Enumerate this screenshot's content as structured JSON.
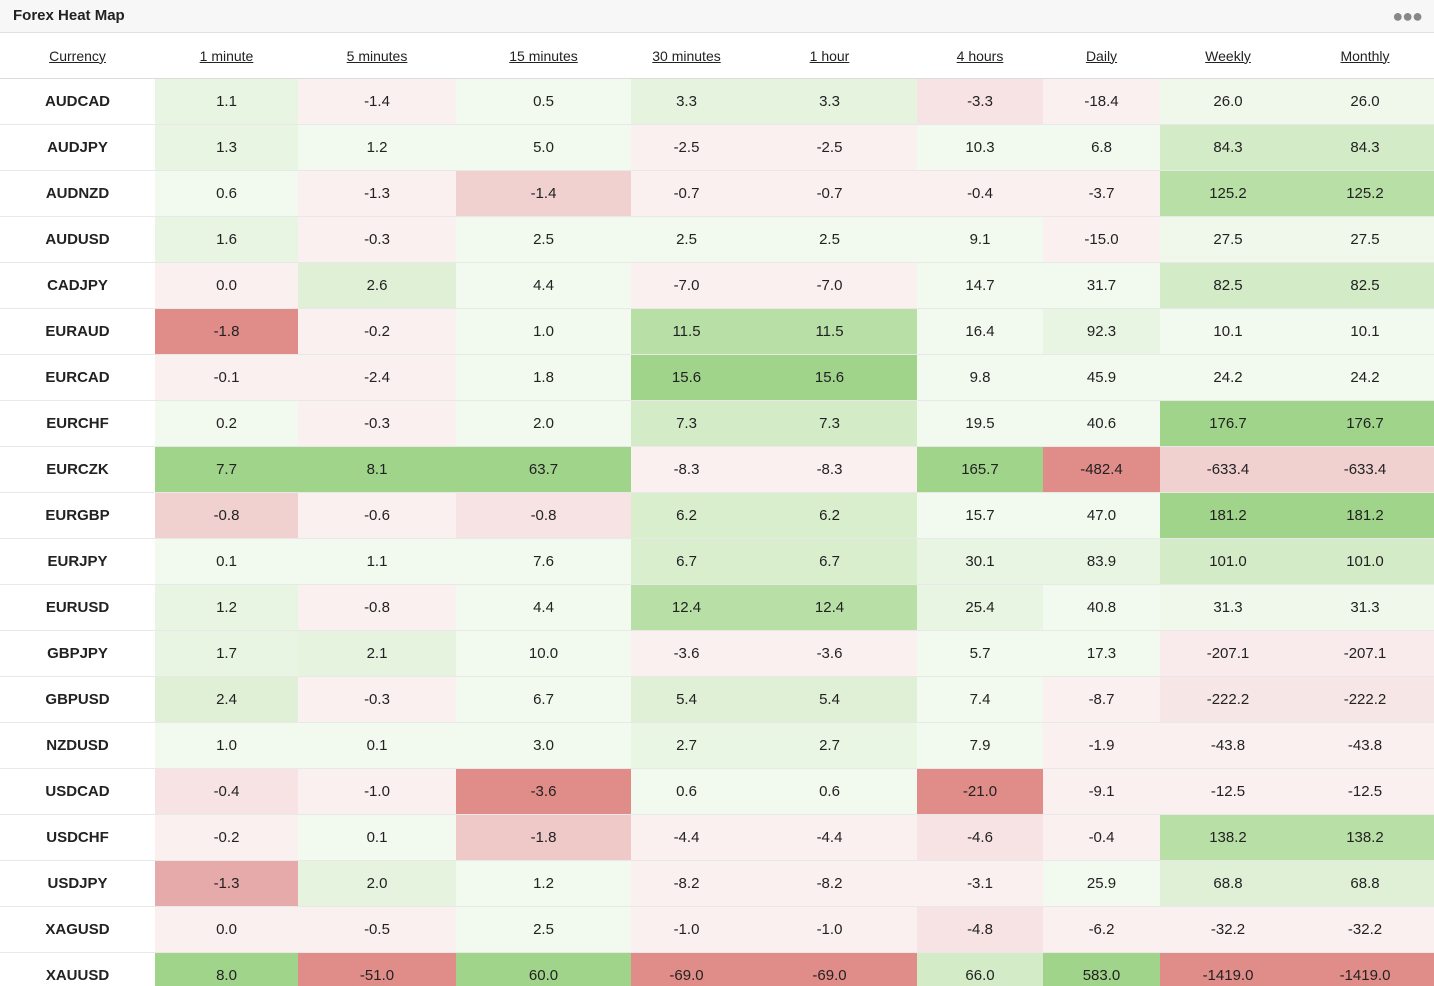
{
  "widget": {
    "title": "Forex Heat Map",
    "menu_icon": "more-horizontal-icon"
  },
  "colors": {
    "strong_green": "#9fd48a",
    "green": "#b8e0a6",
    "light_green": "#d3ecc7",
    "pale_green": "#e9f5e3",
    "faint_green": "#f2f9ef",
    "faint_red": "#fbf0f0",
    "pale_red": "#f7e3e3",
    "light_red": "#f1d0d0",
    "red": "#e7aaaa",
    "strong_red": "#e08c89"
  },
  "headers": [
    "Currency",
    "1 minute",
    "5 minutes",
    "15 minutes",
    "30 minutes",
    "1 hour",
    "4 hours",
    "Daily",
    "Weekly",
    "Monthly"
  ],
  "rows": [
    {
      "pair": "AUDCAD",
      "values": [
        "1.1",
        "-1.4",
        "0.5",
        "3.3",
        "3.3",
        "-3.3",
        "-18.4",
        "26.0",
        "26.0"
      ],
      "colors": [
        "#e9f5e3",
        "#fbf0f0",
        "#f2f9ef",
        "#e6f3df",
        "#e6f3df",
        "#f7e3e3",
        "#fbf0f0",
        "#f0f8ec",
        "#f0f8ec"
      ]
    },
    {
      "pair": "AUDJPY",
      "values": [
        "1.3",
        "1.2",
        "5.0",
        "-2.5",
        "-2.5",
        "10.3",
        "6.8",
        "84.3",
        "84.3"
      ],
      "colors": [
        "#e9f5e3",
        "#f2f9ef",
        "#f2f9ef",
        "#fbf0f0",
        "#fbf0f0",
        "#f2f9ef",
        "#f2f9ef",
        "#d3ecc7",
        "#d3ecc7"
      ]
    },
    {
      "pair": "AUDNZD",
      "values": [
        "0.6",
        "-1.3",
        "-1.4",
        "-0.7",
        "-0.7",
        "-0.4",
        "-3.7",
        "125.2",
        "125.2"
      ],
      "colors": [
        "#f2f9ef",
        "#fbf0f0",
        "#f1d0d0",
        "#fbf0f0",
        "#fbf0f0",
        "#fbf0f0",
        "#fbf0f0",
        "#b8e0a6",
        "#b8e0a6"
      ]
    },
    {
      "pair": "AUDUSD",
      "values": [
        "1.6",
        "-0.3",
        "2.5",
        "2.5",
        "2.5",
        "9.1",
        "-15.0",
        "27.5",
        "27.5"
      ],
      "colors": [
        "#e9f5e3",
        "#fbf0f0",
        "#f2f9ef",
        "#f2f9ef",
        "#f2f9ef",
        "#f2f9ef",
        "#fbf0f0",
        "#f0f8ec",
        "#f0f8ec"
      ]
    },
    {
      "pair": "CADJPY",
      "values": [
        "0.0",
        "2.6",
        "4.4",
        "-7.0",
        "-7.0",
        "14.7",
        "31.7",
        "82.5",
        "82.5"
      ],
      "colors": [
        "#fbf0f0",
        "#dff0d6",
        "#f2f9ef",
        "#fbf0f0",
        "#fbf0f0",
        "#f2f9ef",
        "#f2f9ef",
        "#d3ecc7",
        "#d3ecc7"
      ]
    },
    {
      "pair": "EURAUD",
      "values": [
        "-1.8",
        "-0.2",
        "1.0",
        "11.5",
        "11.5",
        "16.4",
        "92.3",
        "10.1",
        "10.1"
      ],
      "colors": [
        "#e08c89",
        "#fbf0f0",
        "#f2f9ef",
        "#b8e0a6",
        "#b8e0a6",
        "#f2f9ef",
        "#e9f5e3",
        "#f2f9ef",
        "#f2f9ef"
      ]
    },
    {
      "pair": "EURCAD",
      "values": [
        "-0.1",
        "-2.4",
        "1.8",
        "15.6",
        "15.6",
        "9.8",
        "45.9",
        "24.2",
        "24.2"
      ],
      "colors": [
        "#fbf0f0",
        "#fbf0f0",
        "#f2f9ef",
        "#9fd48a",
        "#9fd48a",
        "#f2f9ef",
        "#f2f9ef",
        "#f2f9ef",
        "#f2f9ef"
      ]
    },
    {
      "pair": "EURCHF",
      "values": [
        "0.2",
        "-0.3",
        "2.0",
        "7.3",
        "7.3",
        "19.5",
        "40.6",
        "176.7",
        "176.7"
      ],
      "colors": [
        "#f2f9ef",
        "#fbf0f0",
        "#f2f9ef",
        "#d3ecc7",
        "#d3ecc7",
        "#f2f9ef",
        "#f2f9ef",
        "#9fd48a",
        "#9fd48a"
      ]
    },
    {
      "pair": "EURCZK",
      "values": [
        "7.7",
        "8.1",
        "63.7",
        "-8.3",
        "-8.3",
        "165.7",
        "-482.4",
        "-633.4",
        "-633.4"
      ],
      "colors": [
        "#9fd48a",
        "#9fd48a",
        "#9fd48a",
        "#fbf0f0",
        "#fbf0f0",
        "#9fd48a",
        "#e08c89",
        "#f1d0d0",
        "#f1d0d0"
      ]
    },
    {
      "pair": "EURGBP",
      "values": [
        "-0.8",
        "-0.6",
        "-0.8",
        "6.2",
        "6.2",
        "15.7",
        "47.0",
        "181.2",
        "181.2"
      ],
      "colors": [
        "#f1d0d0",
        "#fbf0f0",
        "#f7e3e3",
        "#d8eecd",
        "#d8eecd",
        "#f2f9ef",
        "#f2f9ef",
        "#9fd48a",
        "#9fd48a"
      ]
    },
    {
      "pair": "EURJPY",
      "values": [
        "0.1",
        "1.1",
        "7.6",
        "6.7",
        "6.7",
        "30.1",
        "83.9",
        "101.0",
        "101.0"
      ],
      "colors": [
        "#f2f9ef",
        "#f2f9ef",
        "#f2f9ef",
        "#d8eecd",
        "#d8eecd",
        "#e9f5e3",
        "#e9f5e3",
        "#d3ecc7",
        "#d3ecc7"
      ]
    },
    {
      "pair": "EURUSD",
      "values": [
        "1.2",
        "-0.8",
        "4.4",
        "12.4",
        "12.4",
        "25.4",
        "40.8",
        "31.3",
        "31.3"
      ],
      "colors": [
        "#e9f5e3",
        "#fbf0f0",
        "#f2f9ef",
        "#b8e0a6",
        "#b8e0a6",
        "#e9f5e3",
        "#f2f9ef",
        "#f0f8ec",
        "#f0f8ec"
      ]
    },
    {
      "pair": "GBPJPY",
      "values": [
        "1.7",
        "2.1",
        "10.0",
        "-3.6",
        "-3.6",
        "5.7",
        "17.3",
        "-207.1",
        "-207.1"
      ],
      "colors": [
        "#e9f5e3",
        "#e6f3df",
        "#f2f9ef",
        "#fbf0f0",
        "#fbf0f0",
        "#f2f9ef",
        "#f2f9ef",
        "#f9ebeb",
        "#f9ebeb"
      ]
    },
    {
      "pair": "GBPUSD",
      "values": [
        "2.4",
        "-0.3",
        "6.7",
        "5.4",
        "5.4",
        "7.4",
        "-8.7",
        "-222.2",
        "-222.2"
      ],
      "colors": [
        "#dff0d6",
        "#fbf0f0",
        "#f2f9ef",
        "#dff0d6",
        "#dff0d6",
        "#f2f9ef",
        "#fbf0f0",
        "#f7e6e6",
        "#f7e6e6"
      ]
    },
    {
      "pair": "NZDUSD",
      "values": [
        "1.0",
        "0.1",
        "3.0",
        "2.7",
        "2.7",
        "7.9",
        "-1.9",
        "-43.8",
        "-43.8"
      ],
      "colors": [
        "#f2f9ef",
        "#f2f9ef",
        "#f2f9ef",
        "#eaf6e4",
        "#eaf6e4",
        "#f2f9ef",
        "#fbf0f0",
        "#fbf0f0",
        "#fbf0f0"
      ]
    },
    {
      "pair": "USDCAD",
      "values": [
        "-0.4",
        "-1.0",
        "-3.6",
        "0.6",
        "0.6",
        "-21.0",
        "-9.1",
        "-12.5",
        "-12.5"
      ],
      "colors": [
        "#f7e3e3",
        "#fbf0f0",
        "#e08c89",
        "#f2f9ef",
        "#f2f9ef",
        "#e08c89",
        "#fbf0f0",
        "#fbf0f0",
        "#fbf0f0"
      ]
    },
    {
      "pair": "USDCHF",
      "values": [
        "-0.2",
        "0.1",
        "-1.8",
        "-4.4",
        "-4.4",
        "-4.6",
        "-0.4",
        "138.2",
        "138.2"
      ],
      "colors": [
        "#fbf0f0",
        "#f2f9ef",
        "#efc8c8",
        "#fbf0f0",
        "#fbf0f0",
        "#f7e3e3",
        "#fbf0f0",
        "#b8e0a6",
        "#b8e0a6"
      ]
    },
    {
      "pair": "USDJPY",
      "values": [
        "-1.3",
        "2.0",
        "1.2",
        "-8.2",
        "-8.2",
        "-3.1",
        "25.9",
        "68.8",
        "68.8"
      ],
      "colors": [
        "#e7aaaa",
        "#e6f3df",
        "#f2f9ef",
        "#fbf0f0",
        "#fbf0f0",
        "#fbf0f0",
        "#f2f9ef",
        "#dff0d6",
        "#dff0d6"
      ]
    },
    {
      "pair": "XAGUSD",
      "values": [
        "0.0",
        "-0.5",
        "2.5",
        "-1.0",
        "-1.0",
        "-4.8",
        "-6.2",
        "-32.2",
        "-32.2"
      ],
      "colors": [
        "#fbf0f0",
        "#fbf0f0",
        "#f2f9ef",
        "#fbf0f0",
        "#fbf0f0",
        "#f7e3e3",
        "#fbf0f0",
        "#fbf0f0",
        "#fbf0f0"
      ]
    },
    {
      "pair": "XAUUSD",
      "values": [
        "8.0",
        "-51.0",
        "60.0",
        "-69.0",
        "-69.0",
        "66.0",
        "583.0",
        "-1419.0",
        "-1419.0"
      ],
      "colors": [
        "#9fd48a",
        "#e08c89",
        "#9fd48a",
        "#e08c89",
        "#e08c89",
        "#d3ecc7",
        "#9fd48a",
        "#e08c89",
        "#e08c89"
      ]
    }
  ]
}
